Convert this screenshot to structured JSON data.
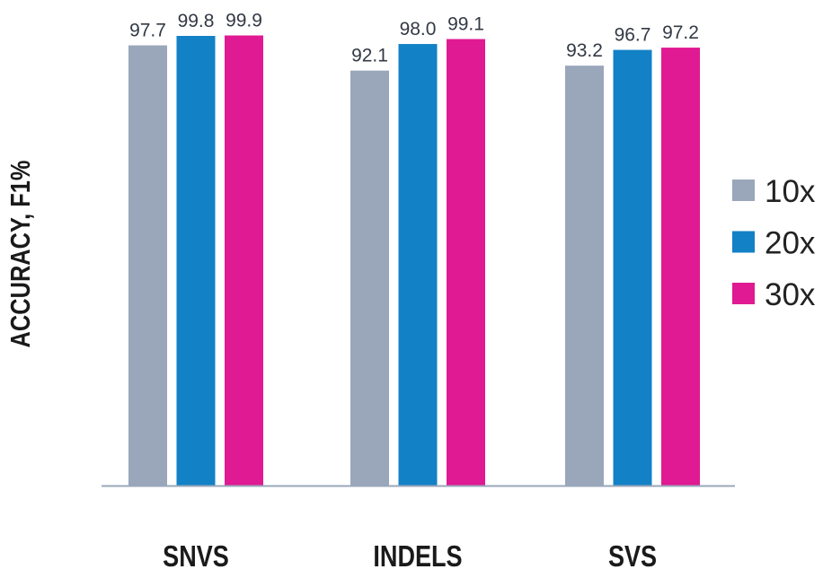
{
  "chart_data": {
    "type": "bar",
    "title": "",
    "xlabel": "",
    "ylabel": "ACCURACY, F1%",
    "ylim": [
      0,
      100
    ],
    "grid": false,
    "legend_position": "right",
    "categories": [
      "SNVS",
      "INDELS",
      "SVS"
    ],
    "series": [
      {
        "name": "10x",
        "color": "#9aa7ba",
        "values": [
          97.7,
          92.1,
          93.2
        ],
        "labels": [
          "97.7",
          "92.1",
          "93.2"
        ]
      },
      {
        "name": "20x",
        "color": "#1381c6",
        "values": [
          99.8,
          98.0,
          96.7
        ],
        "labels": [
          "99.8",
          "98.0",
          "96.7"
        ]
      },
      {
        "name": "30x",
        "color": "#e01a92",
        "values": [
          99.9,
          99.1,
          97.2
        ],
        "labels": [
          "99.9",
          "99.1",
          "97.2"
        ]
      }
    ]
  }
}
